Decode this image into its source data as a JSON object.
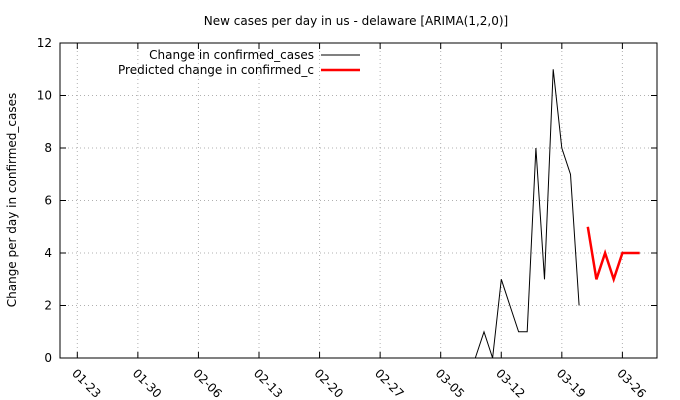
{
  "chart_data": {
    "type": "line",
    "title": "New cases per day in us - delaware [ARIMA(1,2,0)]",
    "xlabel": "",
    "ylabel": "Change per day in confirmed_cases",
    "x_tick_labels": [
      "01-23",
      "01-30",
      "02-06",
      "02-13",
      "02-20",
      "02-27",
      "03-05",
      "03-12",
      "03-19",
      "03-26"
    ],
    "x_tick_dates": [
      "2020-01-23",
      "2020-01-30",
      "2020-02-06",
      "2020-02-13",
      "2020-02-20",
      "2020-02-27",
      "2020-03-05",
      "2020-03-12",
      "2020-03-19",
      "2020-03-26"
    ],
    "xlim": [
      "2020-01-21",
      "2020-03-30"
    ],
    "ylim": [
      0,
      12
    ],
    "y_ticks": [
      0,
      2,
      4,
      6,
      8,
      10,
      12
    ],
    "grid": true,
    "legend_position": "top-left",
    "series": [
      {
        "name": "Change in confirmed_cases",
        "color": "#000000",
        "points": [
          [
            "2020-03-09",
            0
          ],
          [
            "2020-03-10",
            1
          ],
          [
            "2020-03-11",
            0
          ],
          [
            "2020-03-12",
            3
          ],
          [
            "2020-03-13",
            2
          ],
          [
            "2020-03-14",
            1
          ],
          [
            "2020-03-15",
            1
          ],
          [
            "2020-03-16",
            8
          ],
          [
            "2020-03-17",
            3
          ],
          [
            "2020-03-18",
            11
          ],
          [
            "2020-03-19",
            8
          ],
          [
            "2020-03-20",
            7
          ],
          [
            "2020-03-21",
            2
          ]
        ]
      },
      {
        "name": "Predicted change in confirmed_c",
        "color": "#ff0000",
        "points": [
          [
            "2020-03-22",
            5
          ],
          [
            "2020-03-23",
            3
          ],
          [
            "2020-03-24",
            4
          ],
          [
            "2020-03-25",
            3
          ],
          [
            "2020-03-26",
            4
          ],
          [
            "2020-03-27",
            4
          ],
          [
            "2020-03-28",
            4
          ]
        ]
      }
    ]
  }
}
